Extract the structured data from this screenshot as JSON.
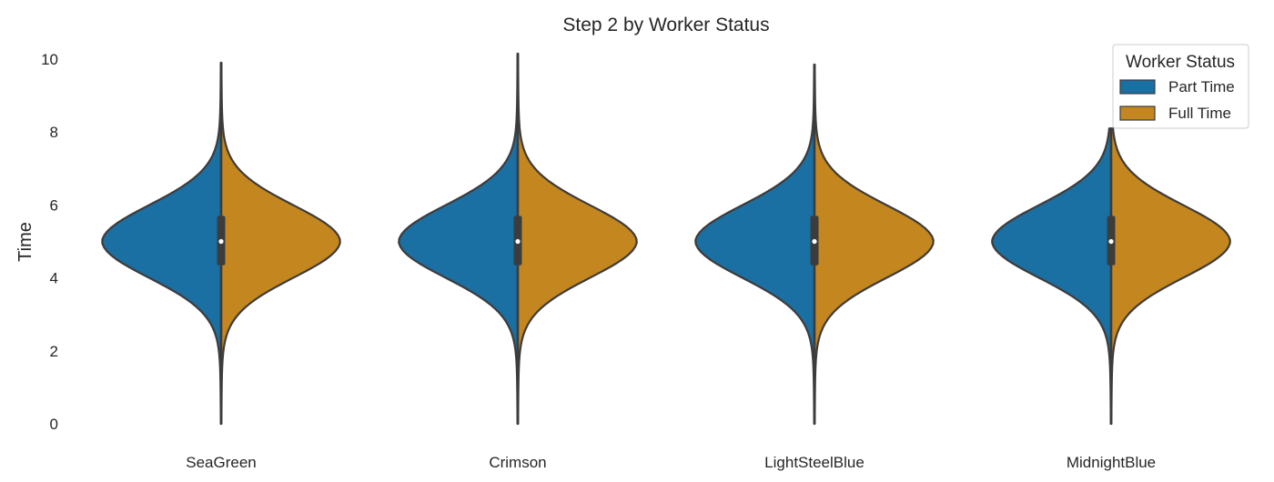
{
  "chart_data": {
    "type": "violin",
    "title": "Step 2 by Worker Status",
    "xlabel": "",
    "ylabel": "Time",
    "categories": [
      "SeaGreen",
      "Crimson",
      "LightSteelBlue",
      "MidnightBlue"
    ],
    "ylim": [
      0,
      10
    ],
    "yticks": [
      0,
      2,
      4,
      6,
      8,
      10
    ],
    "grid": false,
    "split": true,
    "legend": {
      "title": "Worker Status",
      "position": "top-right",
      "entries": [
        "Part Time",
        "Full Time"
      ]
    },
    "series": [
      {
        "name": "Part Time",
        "color": "#1a6fa3",
        "violins": [
          {
            "category": "SeaGreen",
            "min": 0.0,
            "max": 9.9,
            "q1": 4.35,
            "median": 5.0,
            "q3": 5.7
          },
          {
            "category": "Crimson",
            "min": 0.0,
            "max": 10.15,
            "q1": 4.35,
            "median": 5.0,
            "q3": 5.7
          },
          {
            "category": "LightSteelBlue",
            "min": 0.0,
            "max": 9.85,
            "q1": 4.35,
            "median": 5.0,
            "q3": 5.7
          },
          {
            "category": "MidnightBlue",
            "min": 0.0,
            "max": 8.1,
            "q1": 4.35,
            "median": 5.0,
            "q3": 5.7
          }
        ]
      },
      {
        "name": "Full Time",
        "color": "#c4861f",
        "violins": [
          {
            "category": "SeaGreen",
            "min": 0.0,
            "max": 9.9,
            "q1": 4.35,
            "median": 5.0,
            "q3": 5.7
          },
          {
            "category": "Crimson",
            "min": 0.0,
            "max": 10.15,
            "q1": 4.35,
            "median": 5.0,
            "q3": 5.7
          },
          {
            "category": "LightSteelBlue",
            "min": 0.0,
            "max": 9.85,
            "q1": 4.35,
            "median": 5.0,
            "q3": 5.7
          },
          {
            "category": "MidnightBlue",
            "min": 0.0,
            "max": 8.1,
            "q1": 4.35,
            "median": 5.0,
            "q3": 5.7
          }
        ]
      }
    ]
  }
}
